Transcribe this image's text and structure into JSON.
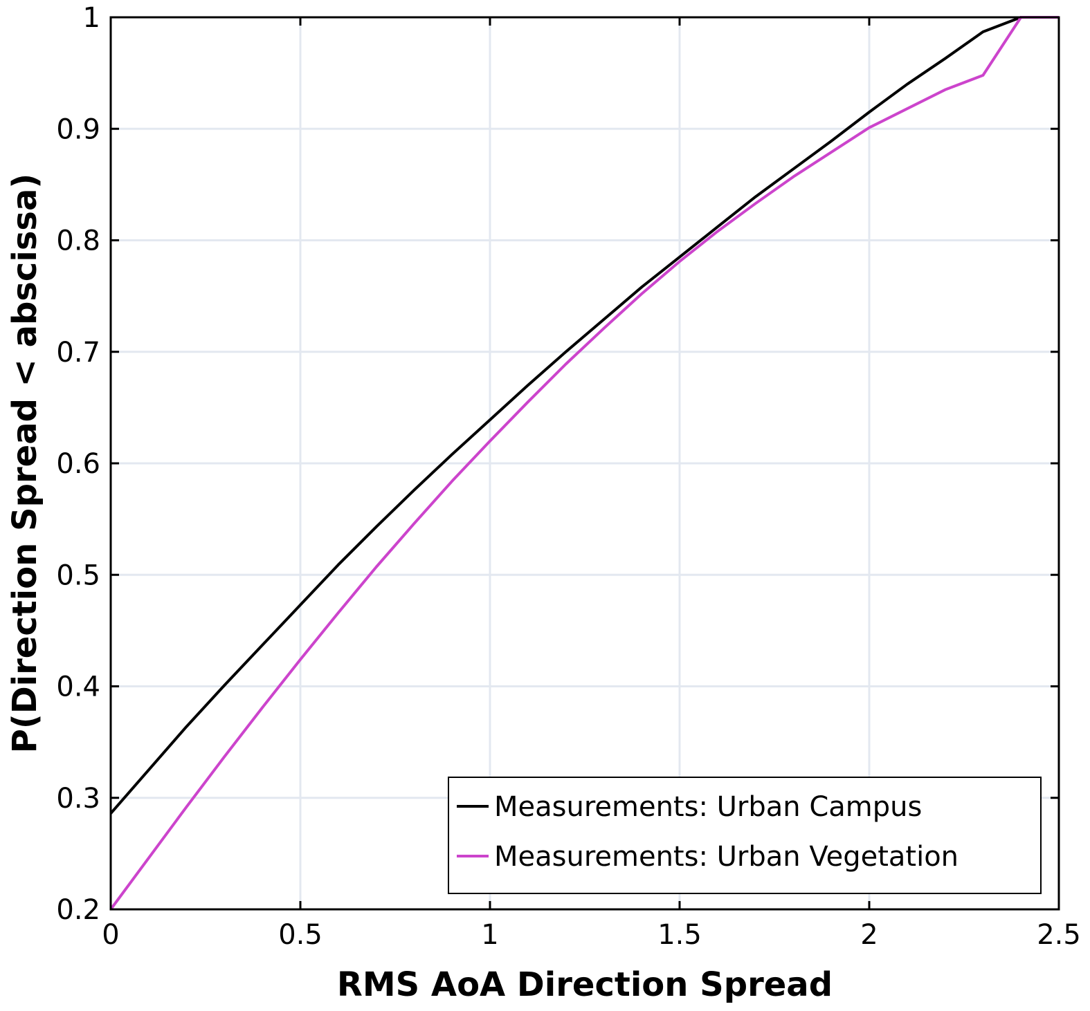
{
  "chart_data": {
    "type": "line",
    "xlabel": "RMS AoA Direction Spread",
    "ylabel": "P(Direction Spread < abscissa)",
    "xlim": [
      0,
      2.5
    ],
    "ylim": [
      0.2,
      1
    ],
    "xticks": [
      0,
      0.5,
      1,
      1.5,
      2,
      2.5
    ],
    "yticks": [
      0.2,
      0.3,
      0.4,
      0.5,
      0.6,
      0.7,
      0.8,
      0.9,
      1
    ],
    "xtick_labels": [
      "0",
      "0.5",
      "1",
      "1.5",
      "2",
      "2.5"
    ],
    "ytick_labels": [
      "0.2",
      "0.3",
      "0.4",
      "0.5",
      "0.6",
      "0.7",
      "0.8",
      "0.9",
      "1"
    ],
    "grid": true,
    "legend_position": "bottom-right",
    "series": [
      {
        "name": "Measurements: Urban Campus",
        "color": "#000000",
        "x": [
          0,
          0.1,
          0.2,
          0.3,
          0.4,
          0.5,
          0.6,
          0.7,
          0.8,
          0.9,
          1.0,
          1.1,
          1.2,
          1.3,
          1.4,
          1.5,
          1.6,
          1.7,
          1.8,
          1.9,
          2.0,
          2.1,
          2.2,
          2.3,
          2.4,
          2.5
        ],
        "y": [
          0.286,
          0.325,
          0.364,
          0.401,
          0.437,
          0.473,
          0.509,
          0.543,
          0.576,
          0.608,
          0.639,
          0.67,
          0.7,
          0.729,
          0.758,
          0.785,
          0.812,
          0.839,
          0.864,
          0.889,
          0.915,
          0.94,
          0.963,
          0.987,
          1.0,
          1.0
        ]
      },
      {
        "name": "Measurements: Urban Vegetation",
        "color": "#cc44cc",
        "x": [
          0,
          0.1,
          0.2,
          0.3,
          0.4,
          0.5,
          0.6,
          0.7,
          0.8,
          0.9,
          1.0,
          1.1,
          1.2,
          1.3,
          1.4,
          1.5,
          1.6,
          1.7,
          1.8,
          1.9,
          2.0,
          2.1,
          2.2,
          2.3,
          2.4,
          2.5
        ],
        "y": [
          0.2,
          0.246,
          0.292,
          0.337,
          0.381,
          0.424,
          0.466,
          0.507,
          0.546,
          0.584,
          0.62,
          0.655,
          0.689,
          0.721,
          0.752,
          0.781,
          0.808,
          0.833,
          0.857,
          0.879,
          0.901,
          0.918,
          0.935,
          0.948,
          1.0,
          1.0
        ]
      }
    ]
  }
}
